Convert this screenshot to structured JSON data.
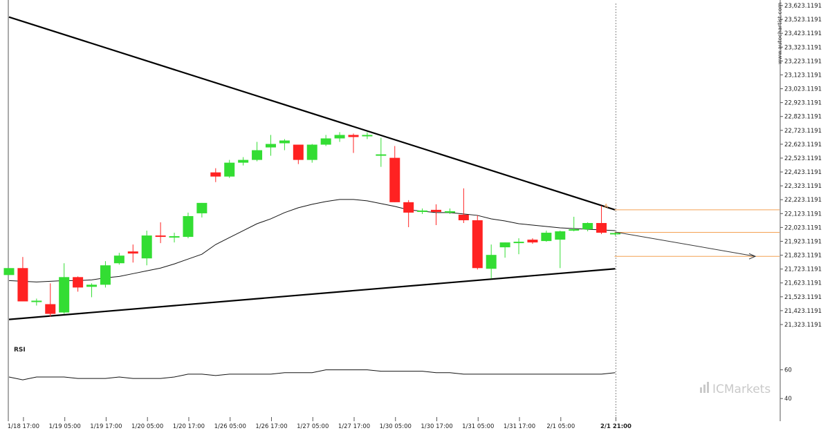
{
  "chart_data": {
    "type": "candlestick",
    "watermark": "www.autochartist.com",
    "brand": "ICMarkets",
    "rsi_label": "RSI",
    "y_ticks": [
      "23,623.1191",
      "23,523.1191",
      "23,423.1191",
      "23,323.1191",
      "23,223.1191",
      "23,123.1191",
      "23,023.1191",
      "22,923.1191",
      "22,823.1191",
      "22,723.1191",
      "22,623.1191",
      "22,523.1191",
      "22,423.1191",
      "22,323.1191",
      "22,223.1191",
      "22,123.1191",
      "22,023.1191",
      "21,923.1191",
      "21,823.1191",
      "21,723.1191",
      "21,623.1191",
      "21,523.1191",
      "21,423.1191",
      "21,323.1191"
    ],
    "y_range": [
      21323.1191,
      23623.1191
    ],
    "rsi_ticks": [
      "60",
      "40"
    ],
    "rsi_range": [
      30,
      80
    ],
    "x_ticks": [
      "1/18 17:00",
      "1/19 05:00",
      "1/19 17:00",
      "1/20 05:00",
      "1/20 17:00",
      "1/26 05:00",
      "1/26 17:00",
      "1/27 05:00",
      "1/27 17:00",
      "1/30 05:00",
      "1/30 17:00",
      "1/31 05:00",
      "1/31 17:00",
      "2/1 05:00",
      "2/1 21:00"
    ],
    "candles": [
      {
        "o": 21680,
        "h": 21740,
        "l": null,
        "c": 21730
      },
      {
        "o": 21730,
        "h": 21810,
        "l": 21500,
        "c": 21490
      },
      {
        "o": 21490,
        "h": 21510,
        "l": 21460,
        "c": 21495
      },
      {
        "o": 21470,
        "h": 21620,
        "l": 21380,
        "c": 21400
      },
      {
        "o": 21410,
        "h": 21765,
        "l": 21400,
        "c": 21665
      },
      {
        "o": 21665,
        "h": 21670,
        "l": 21560,
        "c": 21590
      },
      {
        "o": 21595,
        "h": 21620,
        "l": 21520,
        "c": 21610
      },
      {
        "o": 21610,
        "h": 21780,
        "l": 21590,
        "c": 21750
      },
      {
        "o": 21765,
        "h": 21840,
        "l": 21755,
        "c": 21820
      },
      {
        "o": 21850,
        "h": 21900,
        "l": 21770,
        "c": 21835
      },
      {
        "o": 21800,
        "h": 22000,
        "l": 21750,
        "c": 21965
      },
      {
        "o": 21965,
        "h": 22060,
        "l": 21910,
        "c": 21955
      },
      {
        "o": 21950,
        "h": 21985,
        "l": 21915,
        "c": 21960
      },
      {
        "o": 21955,
        "h": 22130,
        "l": 21945,
        "c": 22105
      },
      {
        "o": 22125,
        "h": 22200,
        "l": 22095,
        "c": 22200
      },
      {
        "o": 22420,
        "h": 22450,
        "l": 22350,
        "c": 22390
      },
      {
        "o": 22390,
        "h": 22510,
        "l": 22380,
        "c": 22490
      },
      {
        "o": 22490,
        "h": 22530,
        "l": 22470,
        "c": 22510
      },
      {
        "o": 22510,
        "h": 22640,
        "l": 22500,
        "c": 22580
      },
      {
        "o": 22600,
        "h": 22690,
        "l": 22540,
        "c": 22625
      },
      {
        "o": 22630,
        "h": 22660,
        "l": 22580,
        "c": 22650
      },
      {
        "o": 22620,
        "h": 22620,
        "l": 22480,
        "c": 22510
      },
      {
        "o": 22510,
        "h": 22625,
        "l": 22490,
        "c": 22620
      },
      {
        "o": 22620,
        "h": 22690,
        "l": 22610,
        "c": 22665
      },
      {
        "o": 22665,
        "h": 22710,
        "l": 22640,
        "c": 22690
      },
      {
        "o": 22690,
        "h": 22700,
        "l": 22560,
        "c": 22675
      },
      {
        "o": 22680,
        "h": 22710,
        "l": 22660,
        "c": 22690
      },
      {
        "o": 22550,
        "h": 22670,
        "l": 22460,
        "c": 22550
      },
      {
        "o": 22525,
        "h": 22610,
        "l": 22205,
        "c": 22205
      },
      {
        "o": 22205,
        "h": 22220,
        "l": 22025,
        "c": 22130
      },
      {
        "o": 22135,
        "h": 22160,
        "l": 22120,
        "c": 22145
      },
      {
        "o": 22150,
        "h": 22190,
        "l": 22040,
        "c": 22135
      },
      {
        "o": 22130,
        "h": 22160,
        "l": 22120,
        "c": 22140
      },
      {
        "o": 22115,
        "h": 22305,
        "l": 22055,
        "c": 22075
      },
      {
        "o": 22075,
        "h": 22110,
        "l": 21720,
        "c": 21730
      },
      {
        "o": 21725,
        "h": 21900,
        "l": 21655,
        "c": 21825
      },
      {
        "o": 21880,
        "h": 21915,
        "l": 21805,
        "c": 21915
      },
      {
        "o": 21915,
        "h": 21945,
        "l": 21830,
        "c": 21920
      },
      {
        "o": 21935,
        "h": 21945,
        "l": 21905,
        "c": 21915
      },
      {
        "o": 21925,
        "h": 22000,
        "l": 21920,
        "c": 21985
      },
      {
        "o": 21935,
        "h": 22000,
        "l": 21730,
        "c": 21995
      },
      {
        "o": 22000,
        "h": 22100,
        "l": 21995,
        "c": 22010
      },
      {
        "o": 22010,
        "h": 22060,
        "l": 21995,
        "c": 22055
      },
      {
        "o": 22055,
        "h": 22180,
        "l": 21975,
        "c": 21985
      },
      {
        "o": 21975,
        "h": 21990,
        "l": 21965,
        "c": 21983
      }
    ],
    "moving_average": [
      21640,
      21635,
      21630,
      21635,
      21640,
      21640,
      21645,
      21660,
      21670,
      21690,
      21710,
      21730,
      21760,
      21795,
      21830,
      21900,
      21950,
      22000,
      22050,
      22085,
      22130,
      22165,
      22190,
      22210,
      22225,
      22225,
      22215,
      22195,
      22175,
      22150,
      22140,
      22130,
      22130,
      22120,
      22110,
      22085,
      22070,
      22050,
      22040,
      22030,
      22020,
      22015,
      22010,
      22005,
      22000
    ],
    "rsi": [
      55,
      53,
      55,
      55,
      55,
      54,
      54,
      54,
      55,
      54,
      54,
      54,
      55,
      57,
      57,
      56,
      57,
      57,
      57,
      57,
      58,
      58,
      58,
      60,
      60,
      60,
      60,
      59,
      59,
      59,
      59,
      58,
      58,
      57,
      57,
      57,
      57,
      57,
      57,
      57,
      57,
      57,
      57,
      57,
      58
    ],
    "triangle_upper": {
      "from": [
        0,
        23540
      ],
      "to": [
        44,
        22150
      ]
    },
    "triangle_lower": {
      "from": [
        0,
        21360
      ],
      "to": [
        44,
        21725
      ]
    },
    "forecast_arrow": {
      "from": [
        44,
        21990
      ],
      "to": [
        54,
        21815
      ]
    },
    "levels": [
      22150,
      21988,
      21815
    ],
    "level_color": "#f4a050",
    "bull_color": "#33dd33",
    "bear_color": "#ff2222",
    "level_marker": "A"
  }
}
